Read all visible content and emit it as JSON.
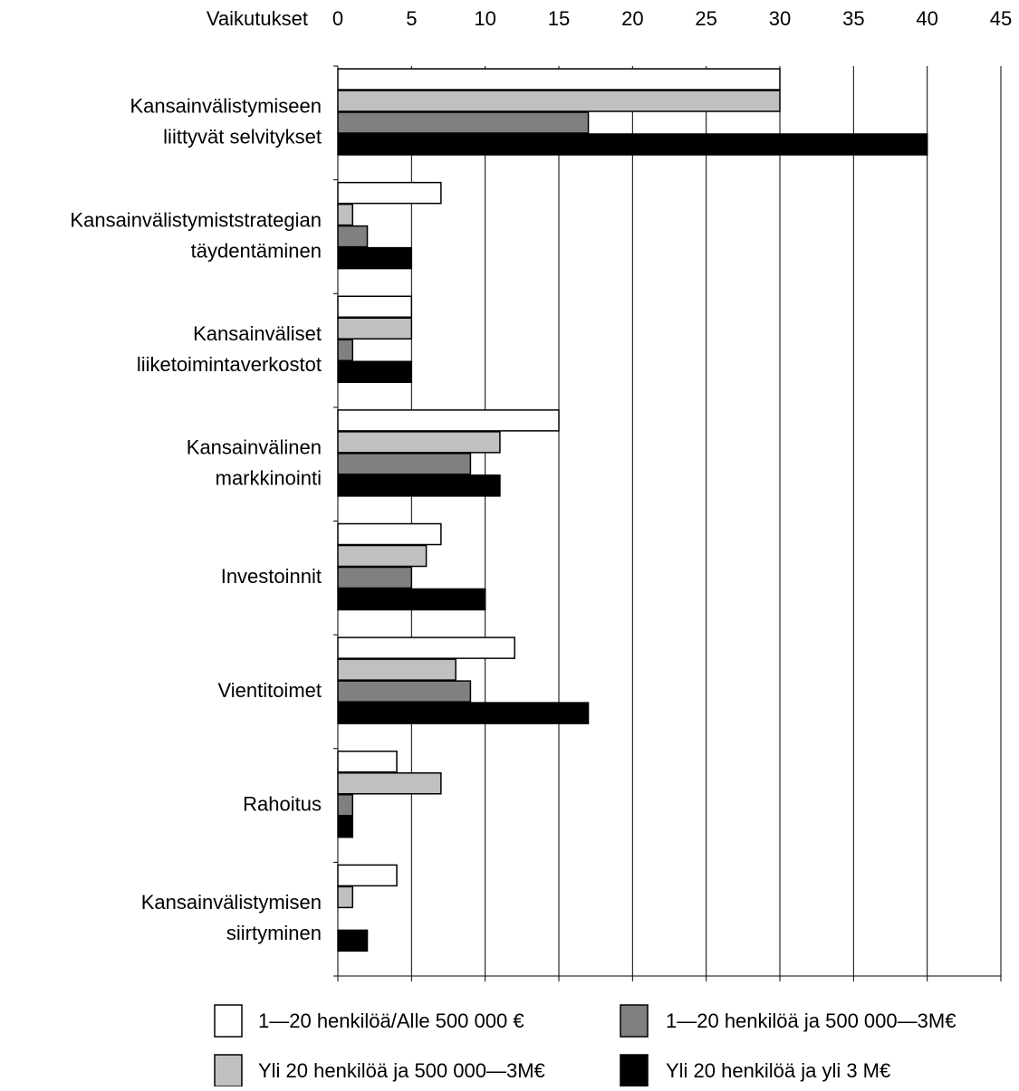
{
  "chart_data": {
    "type": "bar",
    "orientation": "horizontal",
    "x_axis_title": "Vaikutukset",
    "categories": [
      [
        "Kansainvälistymiseen",
        "liittyvät selvitykset"
      ],
      [
        "Kansainvälistymiststrategian",
        "täydentäminen"
      ],
      [
        "Kansainväliset",
        "liiketoimintaverkostot"
      ],
      [
        "Kansainvälinen",
        "markkinointi"
      ],
      [
        "Investoinnit"
      ],
      [
        "Vientitoimet"
      ],
      [
        "Rahoitus"
      ],
      [
        "Kansainvälistymisen",
        "siirtyminen"
      ]
    ],
    "series": [
      {
        "name": "1—20 henkilöä/Alle 500 000 €",
        "color": "#ffffff",
        "values": [
          30,
          7,
          5,
          15,
          7,
          12,
          4,
          4
        ]
      },
      {
        "name": "Yli 20 henkilöä ja 500 000—3M€",
        "color": "#c0c0c0",
        "values": [
          30,
          1,
          5,
          11,
          6,
          8,
          7,
          1
        ]
      },
      {
        "name": "1—20 henkilöä ja 500 000—3M€",
        "color": "#808080",
        "values": [
          17,
          2,
          1,
          9,
          5,
          9,
          1,
          0
        ]
      },
      {
        "name": "Yli 20 henkilöä ja yli 3 M€",
        "color": "#000000",
        "values": [
          40,
          5,
          5,
          11,
          10,
          17,
          1,
          2
        ]
      }
    ],
    "xlim": [
      0,
      45
    ],
    "xticks": [
      0,
      5,
      10,
      15,
      20,
      25,
      30,
      35,
      40,
      45
    ],
    "grid": true
  }
}
